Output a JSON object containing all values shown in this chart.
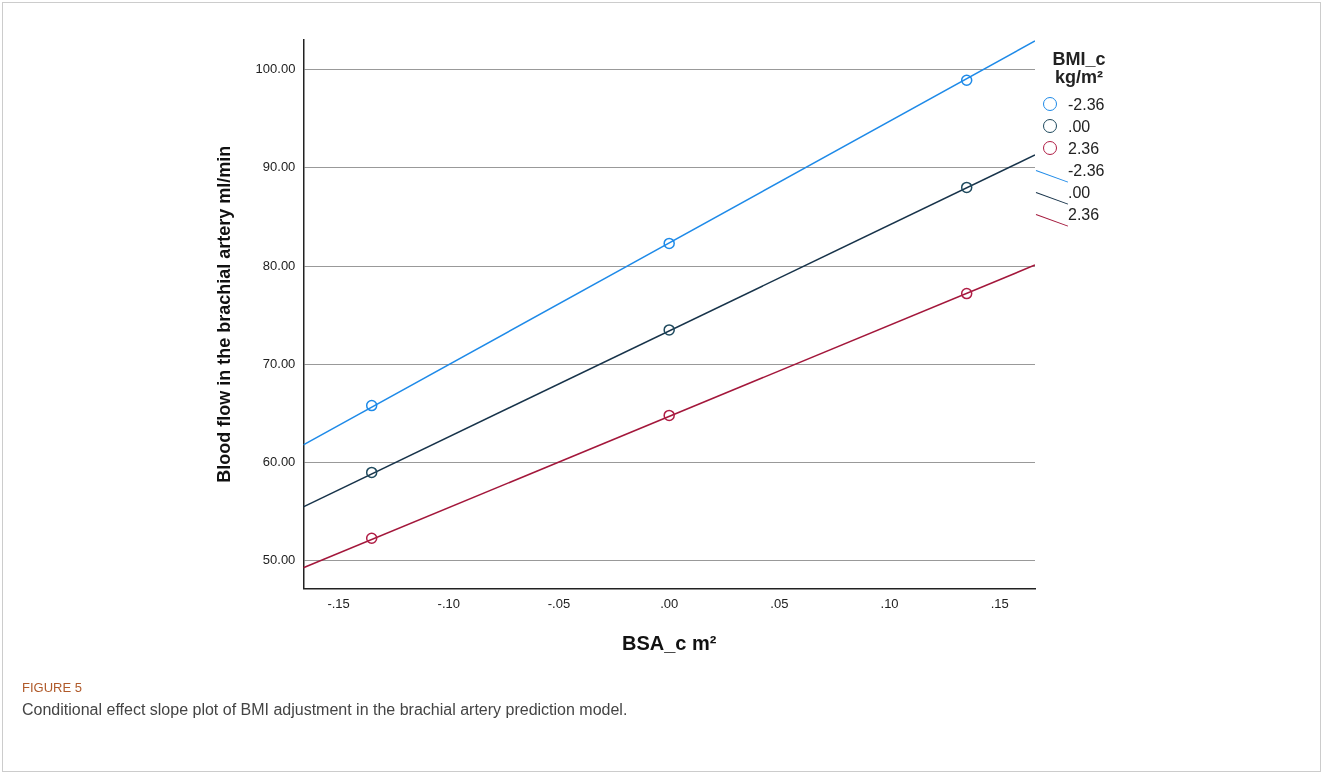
{
  "chart_data": {
    "type": "scatter",
    "xlabel": "BSA_c m²",
    "ylabel": "Blood flow in the brachial artery ml/min",
    "legend_title": "BMI_c kg/m²",
    "annotations": [
      "FIGURE 5",
      "Conditional effect slope plot of BMI adjustment in the brachial artery prediction model."
    ],
    "xlim": [
      -0.166,
      0.166
    ],
    "xticks": [
      {
        "value": -0.15,
        "label": "-.15"
      },
      {
        "value": -0.1,
        "label": "-.10"
      },
      {
        "value": -0.05,
        "label": "-.05"
      },
      {
        "value": 0,
        "label": ".00"
      },
      {
        "value": 0.05,
        "label": ".05"
      },
      {
        "value": 0.1,
        "label": ".10"
      },
      {
        "value": 0.15,
        "label": ".15"
      }
    ],
    "ylim": [
      47.2,
      103
    ],
    "yticks": [
      {
        "value": 50,
        "label": "50.00"
      },
      {
        "value": 60,
        "label": "60.00"
      },
      {
        "value": 70,
        "label": "70.00"
      },
      {
        "value": 80,
        "label": "80.00"
      },
      {
        "value": 90,
        "label": "90.00"
      },
      {
        "value": 100,
        "label": "100.00"
      }
    ],
    "grid": "y",
    "legend": "right",
    "series": [
      {
        "name": "-2.36",
        "color": "#1e8ae8",
        "marker": "circle",
        "x": [
          -0.135,
          0,
          0.135
        ],
        "values": [
          65.8,
          82.3,
          98.9
        ]
      },
      {
        "name": ".00",
        "color": "#1f4a5e",
        "marker": "circle",
        "x": [
          -0.135,
          0,
          0.135
        ],
        "values": [
          59.0,
          73.5,
          88.0
        ]
      },
      {
        "name": "2.36",
        "color": "#b01d45",
        "marker": "circle",
        "x": [
          -0.135,
          0,
          0.135
        ],
        "values": [
          52.3,
          64.8,
          77.2
        ]
      },
      {
        "type": "line",
        "name": "-2.36",
        "color": "#1e8ae8",
        "marker": "none",
        "x": [
          -0.166,
          0.166
        ],
        "values": [
          61.8,
          102.9
        ]
      },
      {
        "type": "line",
        "name": ".00",
        "color": "#17334a",
        "marker": "none",
        "x": [
          -0.166,
          0.166
        ],
        "values": [
          55.5,
          91.3
        ]
      },
      {
        "type": "line",
        "name": "2.36",
        "color": "#a3173b",
        "marker": "none",
        "x": [
          -0.166,
          0.166
        ],
        "values": [
          49.3,
          80.1
        ]
      }
    ]
  }
}
